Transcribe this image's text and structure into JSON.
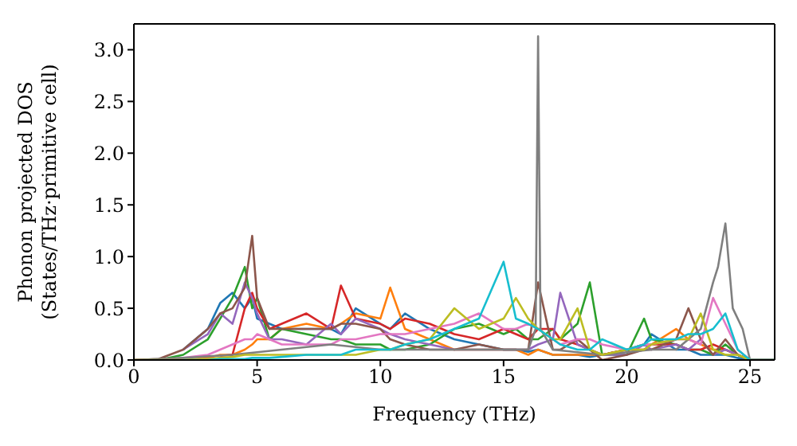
{
  "chart_data": {
    "type": "line",
    "xlabel": "Frequency (THz)",
    "ylabel": "Phonon projected DOS\n(States/THz·primitive cell)",
    "xlim": [
      0,
      26
    ],
    "ylim": [
      0,
      3.25
    ],
    "xticks": [
      0,
      5,
      10,
      15,
      20,
      25
    ],
    "yticks": [
      {
        "value": 0,
        "label": "0.0"
      },
      {
        "value": 0.5,
        "label": "0.5"
      },
      {
        "value": 1,
        "label": "1.0"
      },
      {
        "value": 1.5,
        "label": "1.5"
      },
      {
        "value": 2,
        "label": "2.0"
      },
      {
        "value": 2.5,
        "label": "2.5"
      },
      {
        "value": 3,
        "label": "3.0"
      }
    ],
    "marker": "none",
    "line_style": "solid",
    "x": [
      0,
      1,
      2,
      3,
      3.5,
      4,
      4.5,
      4.8,
      5,
      5.5,
      6,
      7,
      8,
      8.4,
      9,
      10,
      10.4,
      11,
      12,
      13,
      14,
      15,
      15.5,
      16,
      16.4,
      17,
      17.3,
      18,
      18.5,
      19,
      20,
      20.7,
      21,
      22,
      22.5,
      23,
      23.5,
      24,
      24.5,
      25,
      26
    ],
    "series": [
      {
        "color": "#1f77b4",
        "values": [
          null,
          null,
          0.1,
          0.3,
          0.55,
          0.65,
          0.5,
          0.6,
          0.4,
          0.35,
          0.3,
          0.3,
          0.3,
          0.25,
          0.5,
          0.35,
          0.3,
          0.45,
          0.3,
          0.2,
          0.15,
          0.1,
          0.1,
          0.08,
          0.1,
          0.05,
          0.05,
          0.05,
          0.03,
          0.05,
          0.1,
          0.15,
          0.25,
          0.1,
          0.1,
          0.05,
          0.05,
          0.05,
          0.02,
          0,
          0
        ]
      },
      {
        "color": "#ff7f0e",
        "values": [
          null,
          null,
          0,
          0.02,
          0.05,
          0.05,
          0.1,
          0.15,
          0.2,
          0.2,
          0.3,
          0.35,
          0.3,
          0.35,
          0.45,
          0.4,
          0.7,
          0.3,
          0.2,
          0.1,
          0.1,
          0.1,
          0.1,
          0.05,
          0.1,
          0.05,
          0.05,
          0.05,
          0.05,
          0.05,
          0.1,
          0.15,
          0.15,
          0.3,
          0.2,
          0.15,
          0.1,
          0.1,
          0.05,
          null,
          null
        ]
      },
      {
        "color": "#2ca02c",
        "values": [
          0,
          0,
          0.05,
          0.2,
          0.4,
          0.6,
          0.9,
          0.5,
          0.6,
          0.2,
          0.3,
          0.25,
          0.2,
          0.2,
          0.15,
          0.15,
          0.1,
          0.1,
          0.15,
          0.3,
          0.35,
          0.25,
          0.3,
          0.2,
          0.2,
          0.3,
          0.2,
          0.35,
          0.75,
          0.05,
          0.05,
          0.4,
          0.2,
          0.15,
          0.1,
          0.1,
          0.05,
          0.15,
          0.05,
          0,
          0
        ]
      },
      {
        "color": "#d62728",
        "values": [
          null,
          null,
          null,
          null,
          0.04,
          0.05,
          0.5,
          0.65,
          0.5,
          0.3,
          0.35,
          0.45,
          0.3,
          0.72,
          0.4,
          0.35,
          0.3,
          0.4,
          0.35,
          0.25,
          0.2,
          0.3,
          0.25,
          0.2,
          0.3,
          0.3,
          0.2,
          0.15,
          0.1,
          0.05,
          0.1,
          0.1,
          0.15,
          0.15,
          0.1,
          0.1,
          0.15,
          0.1,
          0.05,
          0,
          0
        ]
      },
      {
        "color": "#9467bd",
        "values": [
          null,
          null,
          0.1,
          0.25,
          0.45,
          0.35,
          0.75,
          0.6,
          0.45,
          0.2,
          0.2,
          0.15,
          0.35,
          0.25,
          0.4,
          0.3,
          0.25,
          0.2,
          0.15,
          0.1,
          0.1,
          0.1,
          0.1,
          0.1,
          0.15,
          0.2,
          0.65,
          0.15,
          0.1,
          0.05,
          0.05,
          0.15,
          0.1,
          0.15,
          0.1,
          0.2,
          0.05,
          0.1,
          0.05,
          0,
          0
        ]
      },
      {
        "color": "#8c564b",
        "values": [
          0,
          0.01,
          0.1,
          0.3,
          0.45,
          0.5,
          0.7,
          1.2,
          0.6,
          0.3,
          0.3,
          0.3,
          0.3,
          0.35,
          0.35,
          0.3,
          0.2,
          0.15,
          0.1,
          0.1,
          0.15,
          0.1,
          0.1,
          0.1,
          0.75,
          0.1,
          0.1,
          0.2,
          0.1,
          0,
          0.05,
          0.1,
          0.1,
          0.2,
          0.5,
          0.2,
          0.05,
          0.2,
          0.05,
          0,
          0
        ]
      },
      {
        "color": "#e377c2",
        "values": [
          0,
          0,
          0.02,
          0.05,
          0.1,
          0.15,
          0.2,
          0.2,
          0.25,
          0.2,
          0.15,
          0.15,
          0.15,
          0.2,
          0.2,
          0.25,
          0.25,
          0.25,
          0.3,
          0.35,
          0.45,
          0.3,
          0.3,
          0.35,
          0.3,
          0.2,
          0.15,
          0.2,
          0.2,
          0.15,
          0.1,
          0.15,
          0.15,
          0.2,
          0.2,
          0.15,
          0.6,
          0.35,
          0.1,
          0,
          0
        ]
      },
      {
        "color": "#7f7f7f",
        "x": [
          0,
          2,
          4,
          6,
          8,
          10,
          12,
          14,
          16,
          16.3,
          16.4,
          16.5,
          17,
          19,
          21,
          22,
          23,
          23.5,
          23.7,
          24,
          24.3,
          24.7,
          25,
          26
        ],
        "values": [
          0,
          0.02,
          0.05,
          0.1,
          0.15,
          0.1,
          0.1,
          0.1,
          0.1,
          0.3,
          3.13,
          0.3,
          0.1,
          0.05,
          0.1,
          0.1,
          0.3,
          0.75,
          0.9,
          1.32,
          0.5,
          0.3,
          0,
          0
        ]
      },
      {
        "color": "#bcbd22",
        "values": [
          0,
          0,
          0,
          0.01,
          0.02,
          0.03,
          0.05,
          0.05,
          0.05,
          0.05,
          0.05,
          0.05,
          0.05,
          0.05,
          0.05,
          0.1,
          0.1,
          0.15,
          0.2,
          0.5,
          0.3,
          0.4,
          0.6,
          0.4,
          0.3,
          0.2,
          0.2,
          0.5,
          0.1,
          0.05,
          0.1,
          0.1,
          0.15,
          0.2,
          0.2,
          0.45,
          0.1,
          0.05,
          0.05,
          0,
          0
        ]
      },
      {
        "color": "#17becf",
        "values": [
          null,
          null,
          0,
          0,
          0.01,
          0.01,
          0.01,
          0.02,
          0.02,
          0.02,
          0.03,
          0.05,
          0.05,
          0.05,
          0.1,
          0.1,
          0.1,
          0.15,
          0.2,
          0.3,
          0.4,
          0.95,
          0.4,
          0.35,
          0.3,
          0.2,
          0.15,
          0.1,
          0.1,
          0.2,
          0.1,
          0.15,
          0.2,
          0.2,
          0.25,
          0.25,
          0.3,
          0.45,
          0.1,
          0,
          0
        ]
      }
    ]
  }
}
